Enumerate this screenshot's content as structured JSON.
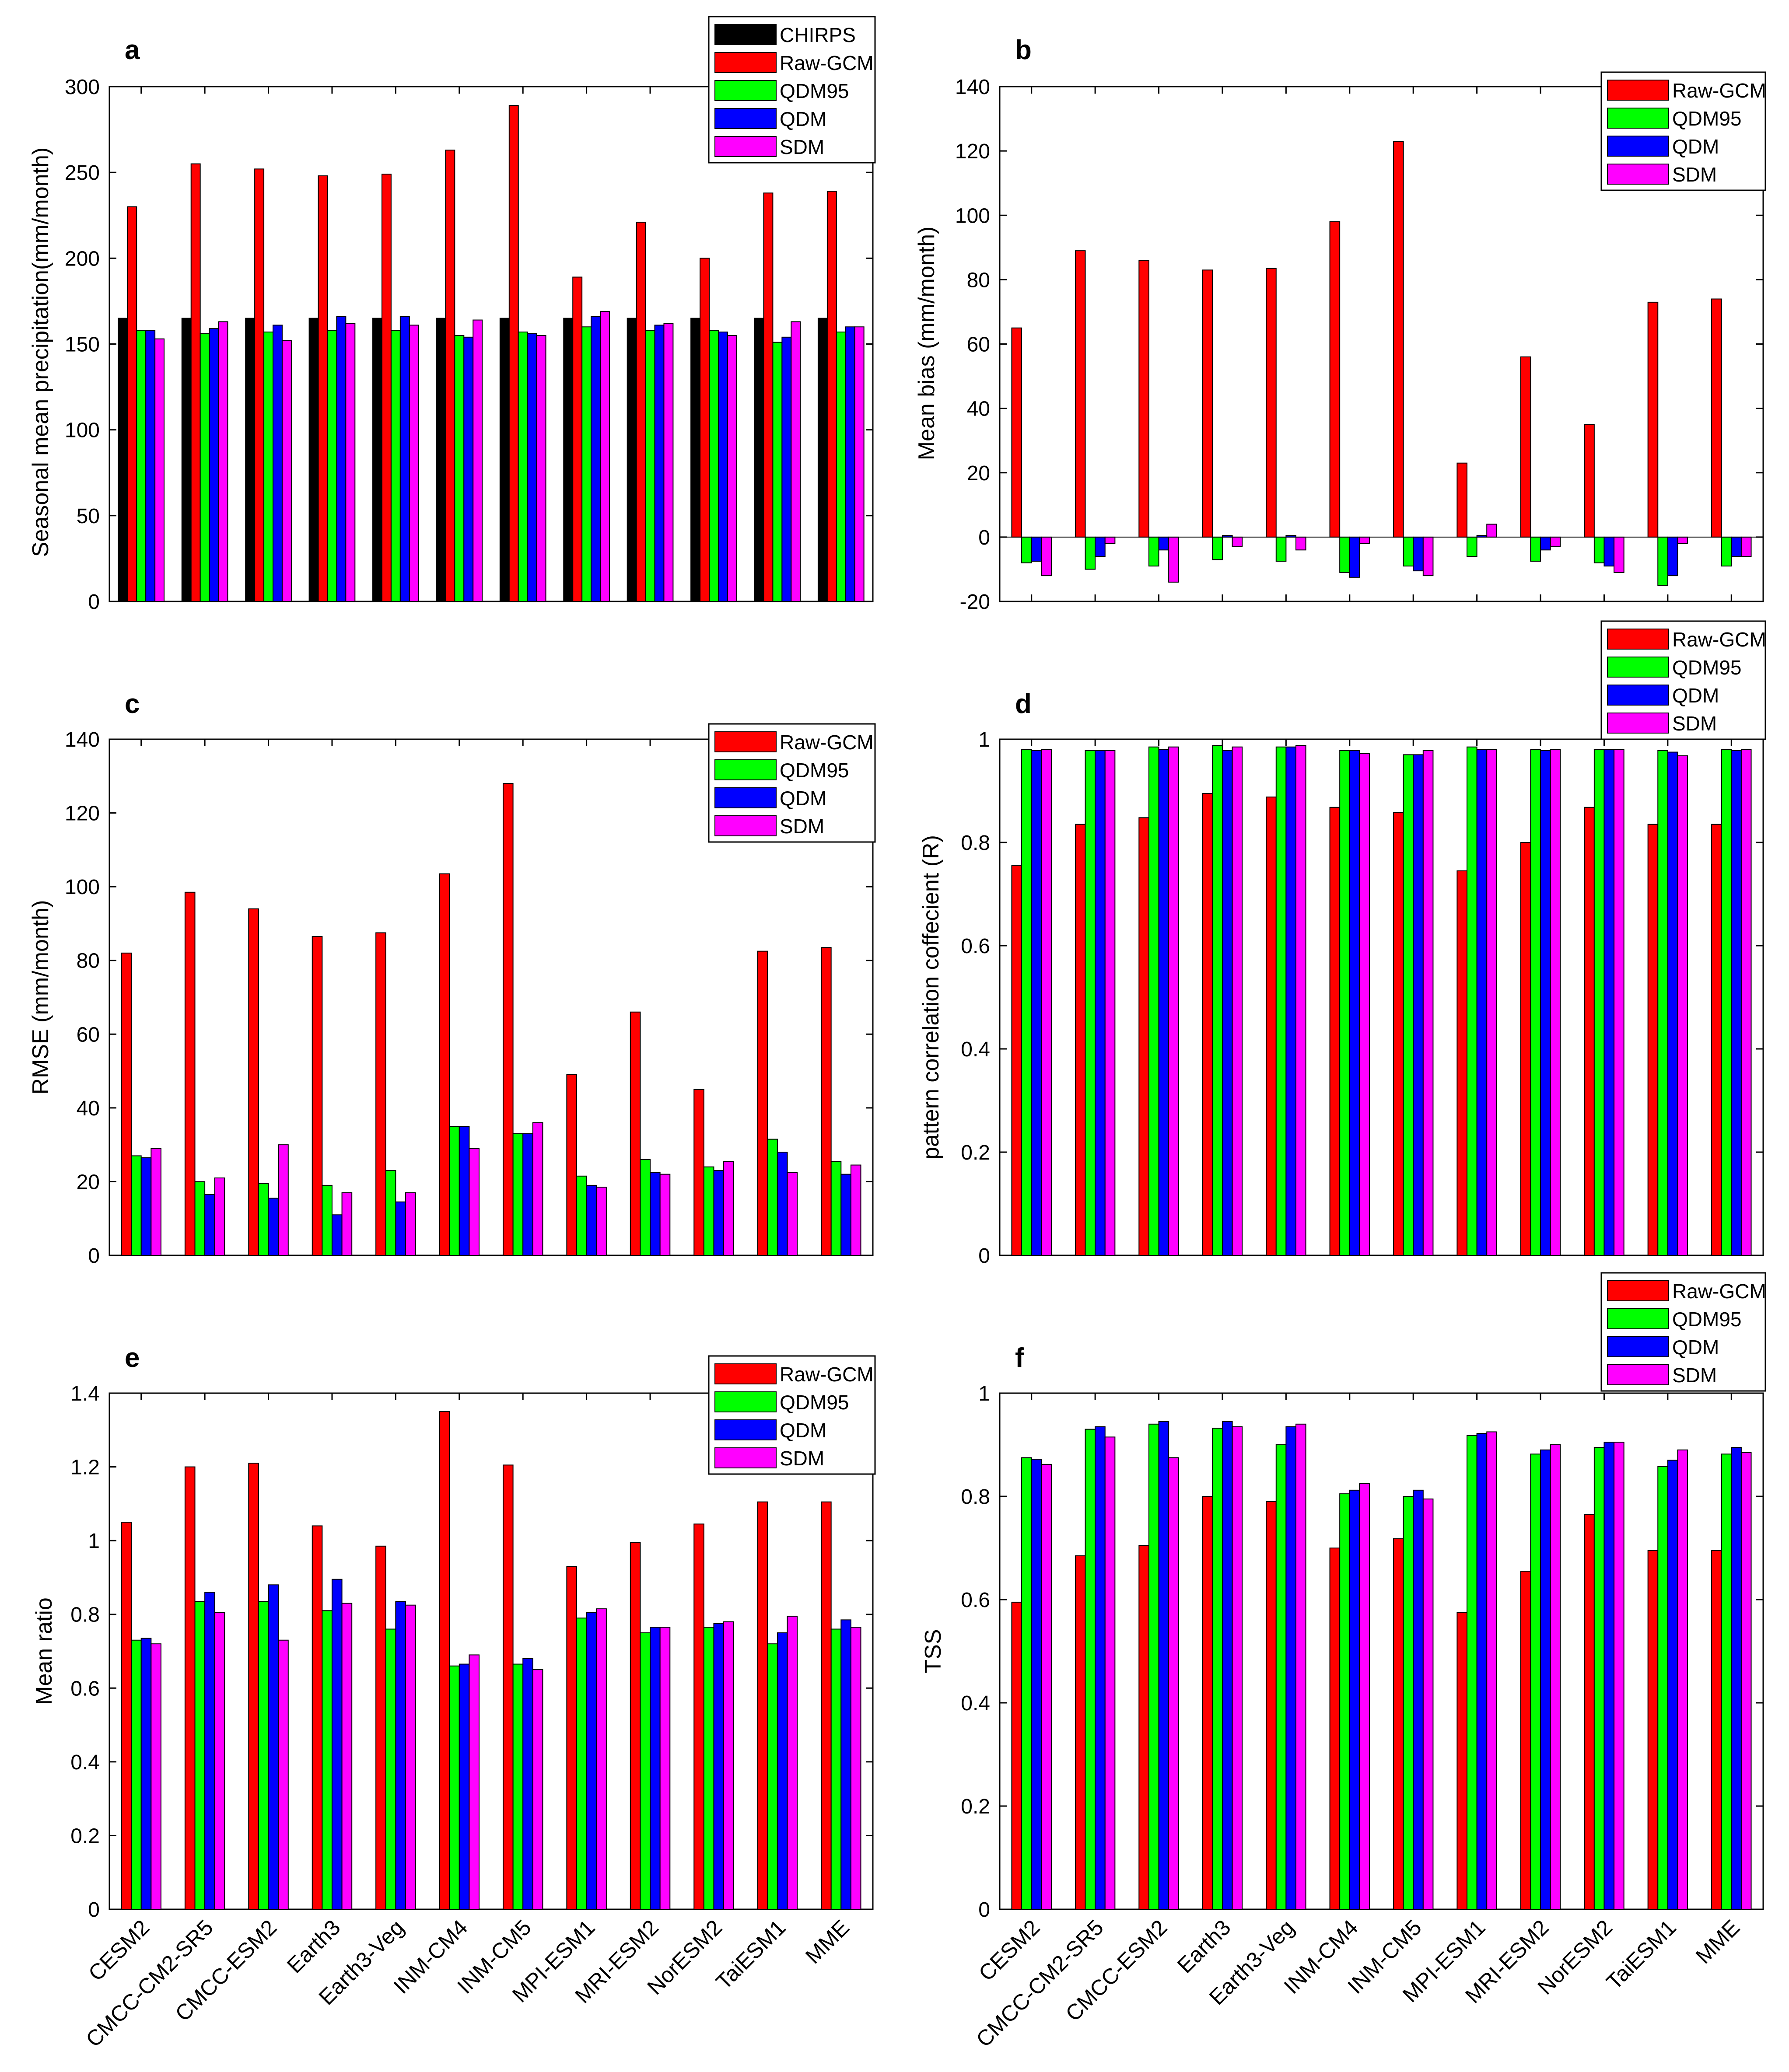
{
  "colors": {
    "CHIRPS": "#000000",
    "Raw-GCM": "#ff0000",
    "QDM95": "#00ff00",
    "QDM": "#0000ff",
    "SDM": "#ff00ff"
  },
  "chart_data": [
    {
      "id": "a",
      "type": "bar",
      "panel_label": "a",
      "title": "",
      "xlabel": "",
      "ylabel": "Seasonal mean precipitation(mm/month)",
      "ylim": [
        0,
        300
      ],
      "yticks": [
        0,
        50,
        100,
        150,
        200,
        250,
        300
      ],
      "legend_position": "top-right",
      "categories": [
        "CESM2",
        "CMCC-CM2-SR5",
        "CMCC-ESM2",
        "Earth3",
        "Earth3-Veg",
        "INM-CM4",
        "INM-CM5",
        "MPI-ESM1",
        "MRI-ESM2",
        "NorESM2",
        "TaiESM1",
        "MME"
      ],
      "series": [
        {
          "name": "CHIRPS",
          "values": [
            165,
            165,
            165,
            165,
            165,
            165,
            165,
            165,
            165,
            165,
            165,
            165
          ]
        },
        {
          "name": "Raw-GCM",
          "values": [
            230,
            255,
            252,
            248,
            249,
            263,
            289,
            189,
            221,
            200,
            238,
            239
          ]
        },
        {
          "name": "QDM95",
          "values": [
            158,
            156,
            157,
            158,
            158,
            155,
            157,
            160,
            158,
            158,
            151,
            157
          ]
        },
        {
          "name": "QDM",
          "values": [
            158,
            159,
            161,
            166,
            166,
            154,
            156,
            166,
            161,
            157,
            154,
            160
          ]
        },
        {
          "name": "SDM",
          "values": [
            153,
            163,
            152,
            162,
            161,
            164,
            155,
            169,
            162,
            155,
            163,
            160
          ]
        }
      ]
    },
    {
      "id": "b",
      "type": "bar",
      "panel_label": "b",
      "title": "",
      "xlabel": "",
      "ylabel": "Mean bias (mm/month)",
      "ylim": [
        -20,
        140
      ],
      "yticks": [
        -20,
        0,
        20,
        40,
        60,
        80,
        100,
        120,
        140
      ],
      "legend_position": "top-right",
      "categories": [
        "CESM2",
        "CMCC-CM2-SR5",
        "CMCC-ESM2",
        "Earth3",
        "Earth3-Veg",
        "INM-CM4",
        "INM-CM5",
        "MPI-ESM1",
        "MRI-ESM2",
        "NorESM2",
        "TaiESM1",
        "MME"
      ],
      "series": [
        {
          "name": "Raw-GCM",
          "values": [
            65,
            89,
            86,
            83,
            83.5,
            98,
            123,
            23,
            56,
            35,
            73,
            74
          ]
        },
        {
          "name": "QDM95",
          "values": [
            -8,
            -10,
            -9,
            -7,
            -7.5,
            -11,
            -9,
            -6,
            -7.5,
            -8,
            -15,
            -9
          ]
        },
        {
          "name": "QDM",
          "values": [
            -7.5,
            -6,
            -4,
            0.5,
            0.5,
            -12.5,
            -10.5,
            0.5,
            -4,
            -9,
            -12,
            -6
          ]
        },
        {
          "name": "SDM",
          "values": [
            -12,
            -2,
            -14,
            -3,
            -4,
            -2,
            -12,
            4,
            -3,
            -11,
            -2,
            -6
          ]
        }
      ]
    },
    {
      "id": "c",
      "type": "bar",
      "panel_label": "c",
      "title": "",
      "xlabel": "",
      "ylabel": "RMSE (mm/month)",
      "ylim": [
        0,
        140
      ],
      "yticks": [
        0,
        20,
        40,
        60,
        80,
        100,
        120,
        140
      ],
      "legend_position": "top-right",
      "categories": [
        "CESM2",
        "CMCC-CM2-SR5",
        "CMCC-ESM2",
        "Earth3",
        "Earth3-Veg",
        "INM-CM4",
        "INM-CM5",
        "MPI-ESM1",
        "MRI-ESM2",
        "NorESM2",
        "TaiESM1",
        "MME"
      ],
      "series": [
        {
          "name": "Raw-GCM",
          "values": [
            82,
            98.5,
            94,
            86.5,
            87.5,
            103.5,
            128,
            49,
            66,
            45,
            82.5,
            83.5
          ]
        },
        {
          "name": "QDM95",
          "values": [
            27,
            20,
            19.5,
            19,
            23,
            35,
            33,
            21.5,
            26,
            24,
            31.5,
            25.5
          ]
        },
        {
          "name": "QDM",
          "values": [
            26.5,
            16.5,
            15.5,
            11,
            14.5,
            35,
            33,
            19,
            22.5,
            23,
            28,
            22
          ]
        },
        {
          "name": "SDM",
          "values": [
            29,
            21,
            30,
            17,
            17,
            29,
            36,
            18.5,
            22,
            25.5,
            22.5,
            24.5
          ]
        }
      ]
    },
    {
      "id": "d",
      "type": "bar",
      "panel_label": "d",
      "title": "",
      "xlabel": "",
      "ylabel": "pattern correlation coffecient (R)",
      "ylim": [
        0,
        1
      ],
      "yticks": [
        0,
        0.2,
        0.4,
        0.6,
        0.8,
        1
      ],
      "legend_position": "top-right (above plot)",
      "categories": [
        "CESM2",
        "CMCC-CM2-SR5",
        "CMCC-ESM2",
        "Earth3",
        "Earth3-Veg",
        "INM-CM4",
        "INM-CM5",
        "MPI-ESM1",
        "MRI-ESM2",
        "NorESM2",
        "TaiESM1",
        "MME"
      ],
      "series": [
        {
          "name": "Raw-GCM",
          "values": [
            0.755,
            0.835,
            0.848,
            0.895,
            0.888,
            0.868,
            0.858,
            0.745,
            0.8,
            0.868,
            0.835,
            0.835
          ]
        },
        {
          "name": "QDM95",
          "values": [
            0.98,
            0.978,
            0.985,
            0.988,
            0.985,
            0.978,
            0.97,
            0.985,
            0.98,
            0.98,
            0.978,
            0.98
          ]
        },
        {
          "name": "QDM",
          "values": [
            0.978,
            0.978,
            0.98,
            0.978,
            0.985,
            0.978,
            0.97,
            0.98,
            0.978,
            0.98,
            0.975,
            0.978
          ]
        },
        {
          "name": "SDM",
          "values": [
            0.98,
            0.978,
            0.985,
            0.985,
            0.988,
            0.972,
            0.978,
            0.98,
            0.98,
            0.98,
            0.968,
            0.98
          ]
        }
      ]
    },
    {
      "id": "e",
      "type": "bar",
      "panel_label": "e",
      "title": "",
      "xlabel": "",
      "ylabel": "Mean ratio",
      "ylim": [
        0,
        1.4
      ],
      "yticks": [
        0,
        0.2,
        0.4,
        0.6,
        0.8,
        1,
        1.2,
        1.4
      ],
      "legend_position": "top-right",
      "categories": [
        "CESM2",
        "CMCC-CM2-SR5",
        "CMCC-ESM2",
        "Earth3",
        "Earth3-Veg",
        "INM-CM4",
        "INM-CM5",
        "MPI-ESM1",
        "MRI-ESM2",
        "NorESM2",
        "TaiESM1",
        "MME"
      ],
      "series": [
        {
          "name": "Raw-GCM",
          "values": [
            1.05,
            1.2,
            1.21,
            1.04,
            0.985,
            1.35,
            1.205,
            0.93,
            0.995,
            1.045,
            1.105,
            1.105
          ]
        },
        {
          "name": "QDM95",
          "values": [
            0.73,
            0.835,
            0.835,
            0.81,
            0.76,
            0.66,
            0.665,
            0.79,
            0.75,
            0.765,
            0.72,
            0.76
          ]
        },
        {
          "name": "QDM",
          "values": [
            0.735,
            0.86,
            0.88,
            0.895,
            0.835,
            0.665,
            0.68,
            0.805,
            0.765,
            0.775,
            0.75,
            0.785
          ]
        },
        {
          "name": "SDM",
          "values": [
            0.72,
            0.805,
            0.73,
            0.83,
            0.825,
            0.69,
            0.65,
            0.815,
            0.765,
            0.78,
            0.795,
            0.765
          ]
        }
      ]
    },
    {
      "id": "f",
      "type": "bar",
      "panel_label": "f",
      "title": "",
      "xlabel": "",
      "ylabel": "TSS",
      "ylim": [
        0,
        1
      ],
      "yticks": [
        0,
        0.2,
        0.4,
        0.6,
        0.8,
        1
      ],
      "legend_position": "top-right (above plot)",
      "categories": [
        "CESM2",
        "CMCC-CM2-SR5",
        "CMCC-ESM2",
        "Earth3",
        "Earth3-Veg",
        "INM-CM4",
        "INM-CM5",
        "MPI-ESM1",
        "MRI-ESM2",
        "NorESM2",
        "TaiESM1",
        "MME"
      ],
      "series": [
        {
          "name": "Raw-GCM",
          "values": [
            0.595,
            0.685,
            0.705,
            0.8,
            0.79,
            0.7,
            0.718,
            0.575,
            0.655,
            0.765,
            0.695,
            0.695
          ]
        },
        {
          "name": "QDM95",
          "values": [
            0.875,
            0.93,
            0.94,
            0.932,
            0.9,
            0.805,
            0.8,
            0.918,
            0.882,
            0.895,
            0.858,
            0.882
          ]
        },
        {
          "name": "QDM",
          "values": [
            0.872,
            0.935,
            0.945,
            0.945,
            0.935,
            0.812,
            0.812,
            0.922,
            0.89,
            0.905,
            0.87,
            0.895
          ]
        },
        {
          "name": "SDM",
          "values": [
            0.862,
            0.915,
            0.875,
            0.935,
            0.94,
            0.825,
            0.795,
            0.925,
            0.9,
            0.905,
            0.89,
            0.885
          ]
        }
      ]
    }
  ]
}
